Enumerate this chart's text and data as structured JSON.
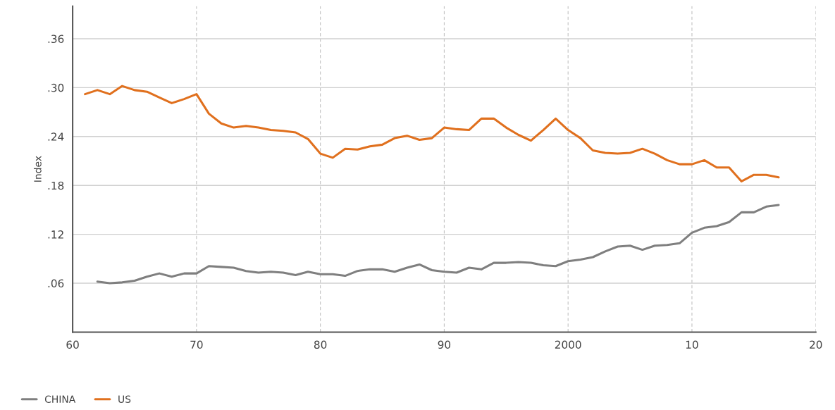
{
  "chart_data": {
    "type": "line",
    "ylabel": "Index",
    "x": [
      1961,
      1962,
      1963,
      1964,
      1965,
      1966,
      1967,
      1968,
      1969,
      1970,
      1971,
      1972,
      1973,
      1974,
      1975,
      1976,
      1977,
      1978,
      1979,
      1980,
      1981,
      1982,
      1983,
      1984,
      1985,
      1986,
      1987,
      1988,
      1989,
      1990,
      1991,
      1992,
      1993,
      1994,
      1995,
      1996,
      1997,
      1998,
      1999,
      2000,
      2001,
      2002,
      2003,
      2004,
      2005,
      2006,
      2007,
      2008,
      2009,
      2010,
      2011,
      2012,
      2013,
      2014,
      2015,
      2016,
      2017
    ],
    "series": [
      {
        "name": "CHINA",
        "color": "#7f7f7f",
        "values": [
          null,
          0.062,
          0.06,
          0.061,
          0.063,
          0.068,
          0.072,
          0.068,
          0.072,
          0.072,
          0.081,
          0.08,
          0.079,
          0.075,
          0.073,
          0.074,
          0.073,
          0.07,
          0.074,
          0.071,
          0.071,
          0.069,
          0.075,
          0.077,
          0.077,
          0.074,
          0.079,
          0.083,
          0.076,
          0.074,
          0.073,
          0.079,
          0.077,
          0.085,
          0.085,
          0.086,
          0.085,
          0.082,
          0.081,
          0.087,
          0.089,
          0.092,
          0.099,
          0.105,
          0.106,
          0.101,
          0.106,
          0.107,
          0.109,
          0.122,
          0.128,
          0.13,
          0.135,
          0.147,
          0.147,
          0.154,
          0.156
        ]
      },
      {
        "name": "US",
        "color": "#e0701e",
        "values": [
          0.292,
          0.297,
          0.292,
          0.302,
          0.297,
          0.295,
          0.288,
          0.281,
          0.286,
          0.292,
          0.268,
          0.256,
          0.251,
          0.253,
          0.251,
          0.248,
          0.247,
          0.245,
          0.237,
          0.219,
          0.214,
          0.225,
          0.224,
          0.228,
          0.23,
          0.238,
          0.241,
          0.236,
          0.238,
          0.251,
          0.249,
          0.248,
          0.262,
          0.262,
          0.251,
          0.242,
          0.235,
          0.248,
          0.262,
          0.248,
          0.238,
          0.223,
          0.22,
          0.219,
          0.22,
          0.225,
          0.219,
          0.211,
          0.206,
          0.206,
          0.211,
          0.202,
          0.202,
          0.185,
          0.193,
          0.193,
          0.19
        ]
      }
    ],
    "xlim": [
      1960,
      2020
    ],
    "xticks": [
      {
        "value": 1960,
        "label": "60"
      },
      {
        "value": 1970,
        "label": "70"
      },
      {
        "value": 1980,
        "label": "80"
      },
      {
        "value": 1990,
        "label": "90"
      },
      {
        "value": 2000,
        "label": "2000"
      },
      {
        "value": 2010,
        "label": "10"
      },
      {
        "value": 2020,
        "label": "20"
      }
    ],
    "ylim": [
      0,
      0.4
    ],
    "yticks": [
      {
        "value": 0.06,
        "label": ".06"
      },
      {
        "value": 0.12,
        "label": ".12"
      },
      {
        "value": 0.18,
        "label": ".18"
      },
      {
        "value": 0.24,
        "label": ".24"
      },
      {
        "value": 0.3,
        "label": ".30"
      },
      {
        "value": 0.36,
        "label": ".36"
      }
    ],
    "grid": true,
    "legend": "bottom left",
    "marker": "none",
    "line_style": "solid"
  }
}
